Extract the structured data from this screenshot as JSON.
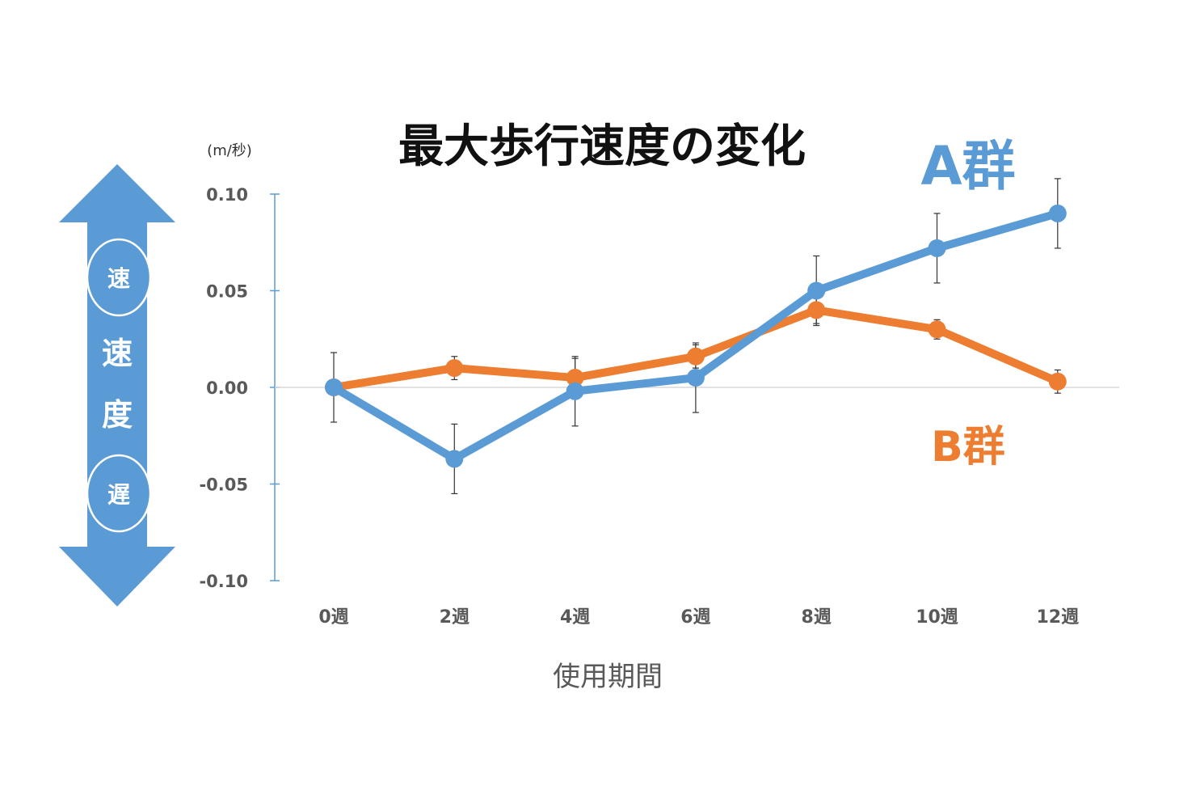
{
  "chart_data": {
    "type": "line",
    "title": "最大歩行速度の変化",
    "unit": "(m/秒)",
    "xlabel": "使用期間",
    "categories": [
      "0週",
      "2週",
      "4週",
      "6週",
      "8週",
      "10週",
      "12週"
    ],
    "ylim": [
      -0.1,
      0.1
    ],
    "yticks": [
      "0.10",
      "0.05",
      "0.00",
      "-0.05",
      "-0.10"
    ],
    "series": [
      {
        "name": "A群",
        "color": "#5b9bd5",
        "values": [
          0.0,
          -0.037,
          -0.002,
          0.005,
          0.05,
          0.072,
          0.09
        ],
        "errors": [
          0.018,
          0.018,
          0.018,
          0.018,
          0.018,
          0.018,
          0.018
        ]
      },
      {
        "name": "B群",
        "color": "#ed7d31",
        "values": [
          0.0,
          0.01,
          0.005,
          0.016,
          0.04,
          0.03,
          0.003
        ],
        "errors": [
          0.0,
          0.006,
          0.01,
          0.006,
          0.007,
          0.005,
          0.006
        ]
      }
    ],
    "zero_line": true,
    "grid": false,
    "legend": "inline labels right"
  },
  "speed_indicator": {
    "label_top_char": "速",
    "label_bottom_char": "度",
    "fast_label": "速",
    "slow_label": "遅",
    "color": "#5b9bd5"
  }
}
